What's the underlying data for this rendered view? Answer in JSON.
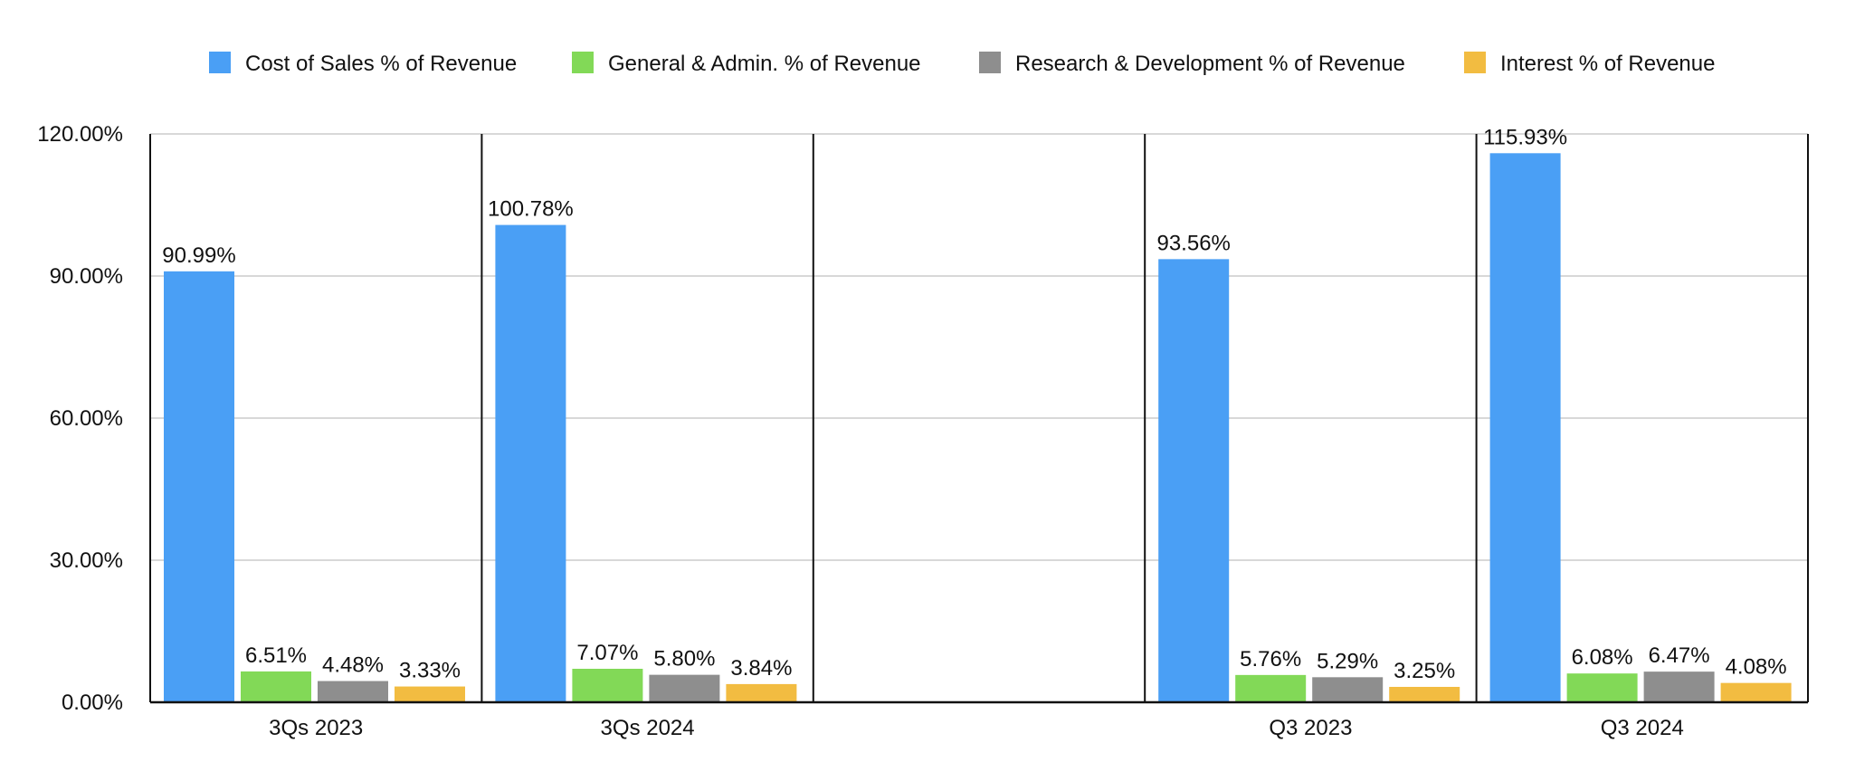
{
  "chart_data": {
    "type": "bar",
    "categories": [
      "3Qs 2023",
      "3Qs 2024",
      "",
      "Q3 2023",
      "Q3 2024"
    ],
    "series": [
      {
        "name": "Cost of Sales % of Revenue",
        "color": "#4A9FF5",
        "values": [
          90.99,
          100.78,
          null,
          93.56,
          115.93
        ],
        "labels": [
          "90.99%",
          "100.78%",
          "",
          "93.56%",
          "115.93%"
        ]
      },
      {
        "name": "General & Admin. % of Revenue",
        "color": "#82D957",
        "values": [
          6.51,
          7.07,
          null,
          5.76,
          6.08
        ],
        "labels": [
          "6.51%",
          "7.07%",
          "",
          "5.76%",
          "6.08%"
        ]
      },
      {
        "name": "Research & Development % of Revenue",
        "color": "#8E8E8E",
        "values": [
          4.48,
          5.8,
          null,
          5.29,
          6.47
        ],
        "labels": [
          "4.48%",
          "5.80%",
          "",
          "5.29%",
          "6.47%"
        ]
      },
      {
        "name": "Interest % of Revenue",
        "color": "#F2BC41",
        "values": [
          3.33,
          3.84,
          null,
          3.25,
          4.08
        ],
        "labels": [
          "3.33%",
          "3.84%",
          "",
          "3.25%",
          "4.08%"
        ]
      }
    ],
    "yticks": [
      0,
      30,
      60,
      90,
      120
    ],
    "ytick_labels": [
      "0.00%",
      "30.00%",
      "60.00%",
      "90.00%",
      "120.00%"
    ],
    "ylim": [
      0,
      120
    ],
    "grid": true,
    "legend_position": "top-center",
    "title": "",
    "xlabel": "",
    "ylabel": ""
  }
}
